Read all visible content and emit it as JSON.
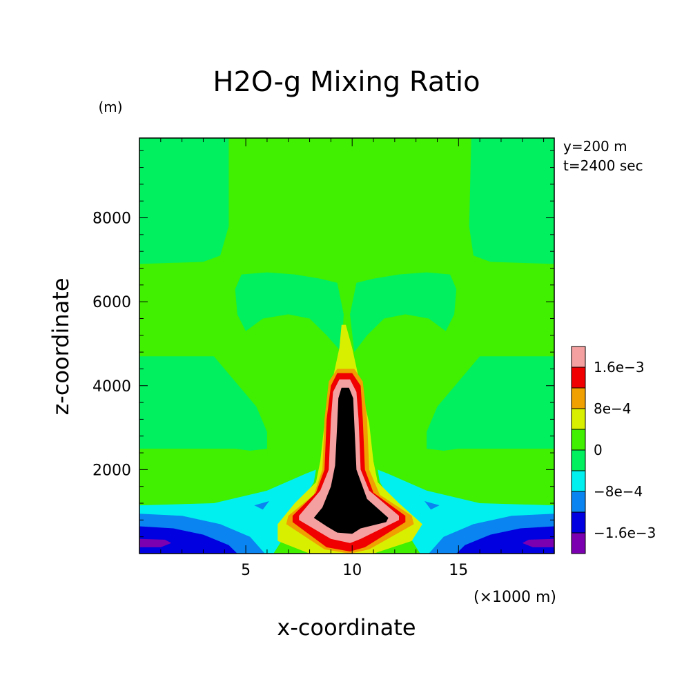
{
  "chart_data": {
    "type": "heatmap",
    "subtype": "filled-contour",
    "title": "H2O-g Mixing Ratio",
    "xlabel": "x-coordinate",
    "ylabel": "z-coordinate",
    "x_unit": "(×1000 m)",
    "y_unit": "(m)",
    "annotations": [
      "y=200 m",
      "t=2400 sec"
    ],
    "xlim": [
      0,
      19.5
    ],
    "ylim": [
      0,
      9900
    ],
    "x_ticks": [
      {
        "value": 5,
        "label": "5"
      },
      {
        "value": 10,
        "label": "10"
      },
      {
        "value": 15,
        "label": "15"
      }
    ],
    "y_ticks": [
      {
        "value": 2000,
        "label": "2000"
      },
      {
        "value": 4000,
        "label": "4000"
      },
      {
        "value": 6000,
        "label": "6000"
      },
      {
        "value": 8000,
        "label": "8000"
      }
    ],
    "colorbar": {
      "levels": [
        -0.002,
        -0.0016,
        -0.0012,
        -0.0008,
        -0.0004,
        0,
        0.0004,
        0.0008,
        0.0012,
        0.0016,
        0.002
      ],
      "colors": [
        "#7a00b0",
        "#0000e0",
        "#0a84f0",
        "#00f0f0",
        "#00f060",
        "#40f000",
        "#d8f000",
        "#f0a000",
        "#f00000",
        "#f4a0a0"
      ],
      "labels": [
        {
          "value": -0.0016,
          "label": "−1.6e−3"
        },
        {
          "value": -0.0008,
          "label": "−8e−4"
        },
        {
          "value": 0,
          "label": "0"
        },
        {
          "value": 0.0008,
          "label": "8e−4"
        },
        {
          "value": 0.0016,
          "label": "1.6e−3"
        }
      ]
    },
    "background_value_fill": "#40f000",
    "regions": [
      {
        "name": "upper-left-band",
        "level_index": 4,
        "polygon": [
          [
            0,
            9900
          ],
          [
            4.2,
            9900
          ],
          [
            4.2,
            7800
          ],
          [
            3.8,
            7100
          ],
          [
            3.0,
            6950
          ],
          [
            0,
            6900
          ]
        ]
      },
      {
        "name": "upper-right-band",
        "level_index": 4,
        "polygon": [
          [
            15.6,
            9900
          ],
          [
            19.5,
            9900
          ],
          [
            19.5,
            6900
          ],
          [
            16.5,
            6950
          ],
          [
            15.7,
            7100
          ],
          [
            15.5,
            7800
          ]
        ]
      },
      {
        "name": "mid-left-band",
        "level_index": 4,
        "polygon": [
          [
            0,
            4700
          ],
          [
            3.5,
            4700
          ],
          [
            4.5,
            4100
          ],
          [
            5.5,
            3500
          ],
          [
            6.0,
            2900
          ],
          [
            6.0,
            2500
          ],
          [
            5.2,
            2450
          ],
          [
            4.5,
            2500
          ],
          [
            0,
            2500
          ]
        ]
      },
      {
        "name": "mid-right-band",
        "level_index": 4,
        "polygon": [
          [
            19.5,
            4700
          ],
          [
            16.0,
            4700
          ],
          [
            15.0,
            4100
          ],
          [
            14.0,
            3500
          ],
          [
            13.5,
            2900
          ],
          [
            13.5,
            2500
          ],
          [
            14.3,
            2450
          ],
          [
            15.0,
            2500
          ],
          [
            19.5,
            2500
          ]
        ]
      },
      {
        "name": "butterfly-left",
        "level_index": 4,
        "polygon": [
          [
            4.8,
            6650
          ],
          [
            6.0,
            6700
          ],
          [
            7.3,
            6650
          ],
          [
            8.5,
            6550
          ],
          [
            9.3,
            6450
          ],
          [
            9.6,
            5700
          ],
          [
            9.5,
            4800
          ],
          [
            8.8,
            5200
          ],
          [
            8.0,
            5600
          ],
          [
            7.0,
            5700
          ],
          [
            5.8,
            5600
          ],
          [
            5.0,
            5300
          ],
          [
            4.6,
            5700
          ],
          [
            4.5,
            6300
          ]
        ]
      },
      {
        "name": "butterfly-right",
        "level_index": 4,
        "polygon": [
          [
            10.2,
            6450
          ],
          [
            11.0,
            6550
          ],
          [
            12.2,
            6650
          ],
          [
            13.5,
            6700
          ],
          [
            14.6,
            6650
          ],
          [
            14.9,
            6300
          ],
          [
            14.8,
            5700
          ],
          [
            14.4,
            5300
          ],
          [
            13.6,
            5600
          ],
          [
            12.5,
            5700
          ],
          [
            11.5,
            5600
          ],
          [
            10.7,
            5200
          ],
          [
            10.1,
            4800
          ],
          [
            9.9,
            5700
          ]
        ]
      },
      {
        "name": "plume-low-left",
        "level_index": 5,
        "polygon": [
          [
            0,
            1900
          ],
          [
            1.8,
            1950
          ],
          [
            2.8,
            1950
          ],
          [
            2.5,
            1700
          ],
          [
            1.5,
            1600
          ],
          [
            0,
            1650
          ]
        ]
      },
      {
        "name": "plume-low-right",
        "level_index": 5,
        "polygon": [
          [
            19.5,
            1900
          ],
          [
            17.7,
            1950
          ],
          [
            16.7,
            1950
          ],
          [
            17.0,
            1700
          ],
          [
            18.0,
            1600
          ],
          [
            19.5,
            1650
          ]
        ]
      },
      {
        "name": "left-cyan-wedge",
        "level_index": 3,
        "polygon": [
          [
            0,
            1150
          ],
          [
            3.5,
            1200
          ],
          [
            6.0,
            1500
          ],
          [
            7.8,
            1900
          ],
          [
            8.3,
            2000
          ],
          [
            8.2,
            1700
          ],
          [
            7.6,
            1200
          ],
          [
            7.2,
            700
          ],
          [
            6.8,
            400
          ],
          [
            6.3,
            0
          ],
          [
            0,
            0
          ]
        ]
      },
      {
        "name": "right-cyan-wedge",
        "level_index": 3,
        "polygon": [
          [
            19.5,
            1150
          ],
          [
            16.0,
            1200
          ],
          [
            13.5,
            1500
          ],
          [
            11.7,
            1900
          ],
          [
            11.2,
            2000
          ],
          [
            11.3,
            1700
          ],
          [
            11.9,
            1200
          ],
          [
            12.3,
            700
          ],
          [
            12.7,
            400
          ],
          [
            13.2,
            0
          ],
          [
            19.5,
            0
          ]
        ]
      },
      {
        "name": "left-blue-band",
        "level_index": 2,
        "polygon": [
          [
            0,
            950
          ],
          [
            2.0,
            900
          ],
          [
            3.8,
            700
          ],
          [
            5.2,
            400
          ],
          [
            5.9,
            0
          ],
          [
            0,
            0
          ]
        ]
      },
      {
        "name": "right-blue-band",
        "level_index": 2,
        "polygon": [
          [
            19.5,
            950
          ],
          [
            17.5,
            900
          ],
          [
            15.7,
            700
          ],
          [
            14.3,
            400
          ],
          [
            13.6,
            0
          ],
          [
            19.5,
            0
          ]
        ]
      },
      {
        "name": "left-darkblue-band",
        "level_index": 1,
        "polygon": [
          [
            0,
            650
          ],
          [
            1.6,
            600
          ],
          [
            3.0,
            450
          ],
          [
            4.2,
            200
          ],
          [
            4.6,
            0
          ],
          [
            0,
            0
          ]
        ]
      },
      {
        "name": "right-darkblue-band",
        "level_index": 1,
        "polygon": [
          [
            19.5,
            650
          ],
          [
            17.9,
            600
          ],
          [
            16.5,
            450
          ],
          [
            15.3,
            200
          ],
          [
            14.9,
            0
          ],
          [
            19.5,
            0
          ]
        ]
      },
      {
        "name": "left-purple-core",
        "level_index": 0,
        "polygon": [
          [
            0,
            350
          ],
          [
            1.2,
            330
          ],
          [
            1.5,
            250
          ],
          [
            1.0,
            150
          ],
          [
            0,
            150
          ]
        ]
      },
      {
        "name": "right-purple-core",
        "level_index": 0,
        "polygon": [
          [
            19.5,
            350
          ],
          [
            18.3,
            330
          ],
          [
            18.0,
            250
          ],
          [
            18.5,
            150
          ],
          [
            19.5,
            150
          ]
        ]
      },
      {
        "name": "left-blue-fleck",
        "level_index": 2,
        "polygon": [
          [
            5.4,
            1150
          ],
          [
            6.1,
            1250
          ],
          [
            5.8,
            1050
          ]
        ]
      },
      {
        "name": "right-blue-fleck",
        "level_index": 2,
        "polygon": [
          [
            14.1,
            1150
          ],
          [
            13.4,
            1250
          ],
          [
            13.7,
            1050
          ]
        ]
      },
      {
        "name": "plume-0.0004",
        "level_index": 6,
        "polygon": [
          [
            9.4,
            4900
          ],
          [
            9.5,
            5450
          ],
          [
            9.7,
            5450
          ],
          [
            10.0,
            4900
          ],
          [
            10.3,
            4200
          ],
          [
            10.8,
            3100
          ],
          [
            11.0,
            2200
          ],
          [
            11.2,
            1700
          ],
          [
            12.2,
            1200
          ],
          [
            13.3,
            700
          ],
          [
            12.8,
            300
          ],
          [
            11.0,
            0
          ],
          [
            8.0,
            0
          ],
          [
            6.5,
            300
          ],
          [
            6.5,
            700
          ],
          [
            7.3,
            1200
          ],
          [
            8.3,
            1700
          ],
          [
            8.5,
            2200
          ],
          [
            8.7,
            3100
          ],
          [
            9.1,
            4200
          ]
        ]
      },
      {
        "name": "plume-0.0008",
        "level_index": 7,
        "polygon": [
          [
            9.3,
            4400
          ],
          [
            10.1,
            4400
          ],
          [
            10.5,
            4100
          ],
          [
            10.7,
            3200
          ],
          [
            10.8,
            2000
          ],
          [
            11.3,
            1400
          ],
          [
            12.8,
            900
          ],
          [
            12.9,
            700
          ],
          [
            10.8,
            100
          ],
          [
            9.9,
            0
          ],
          [
            8.7,
            100
          ],
          [
            6.9,
            700
          ],
          [
            7.0,
            900
          ],
          [
            8.2,
            1400
          ],
          [
            8.6,
            2000
          ],
          [
            8.7,
            3200
          ],
          [
            8.9,
            4100
          ]
        ]
      },
      {
        "name": "plume-0.0012",
        "level_index": 8,
        "polygon": [
          [
            9.3,
            4300
          ],
          [
            10.0,
            4300
          ],
          [
            10.4,
            4000
          ],
          [
            10.5,
            3200
          ],
          [
            10.6,
            2000
          ],
          [
            11.0,
            1450
          ],
          [
            12.5,
            900
          ],
          [
            12.5,
            750
          ],
          [
            10.6,
            150
          ],
          [
            9.9,
            50
          ],
          [
            8.8,
            150
          ],
          [
            7.2,
            750
          ],
          [
            7.2,
            900
          ],
          [
            8.3,
            1450
          ],
          [
            8.7,
            2000
          ],
          [
            8.8,
            3200
          ],
          [
            9.0,
            4000
          ]
        ]
      },
      {
        "name": "plume-0.0016",
        "level_index": 9,
        "polygon": [
          [
            9.4,
            4150
          ],
          [
            9.9,
            4150
          ],
          [
            10.2,
            3850
          ],
          [
            10.3,
            3200
          ],
          [
            10.4,
            2000
          ],
          [
            10.8,
            1500
          ],
          [
            12.2,
            900
          ],
          [
            12.2,
            800
          ],
          [
            10.4,
            350
          ],
          [
            9.9,
            250
          ],
          [
            9.0,
            350
          ],
          [
            7.5,
            800
          ],
          [
            7.5,
            900
          ],
          [
            8.5,
            1500
          ],
          [
            8.9,
            2000
          ],
          [
            9.0,
            3200
          ],
          [
            9.1,
            3850
          ]
        ]
      },
      {
        "name": "plume-0.002",
        "level_index": 10,
        "polygon": [
          [
            9.5,
            3950
          ],
          [
            9.85,
            3950
          ],
          [
            10.05,
            3700
          ],
          [
            10.1,
            3100
          ],
          [
            10.2,
            2000
          ],
          [
            10.7,
            1300
          ],
          [
            11.7,
            850
          ],
          [
            11.6,
            750
          ],
          [
            10.4,
            600
          ],
          [
            10.0,
            470
          ],
          [
            9.3,
            500
          ],
          [
            8.8,
            650
          ],
          [
            8.2,
            850
          ],
          [
            8.6,
            1100
          ],
          [
            9.0,
            1600
          ],
          [
            9.2,
            2100
          ],
          [
            9.3,
            3100
          ],
          [
            9.35,
            3700
          ]
        ]
      }
    ]
  }
}
